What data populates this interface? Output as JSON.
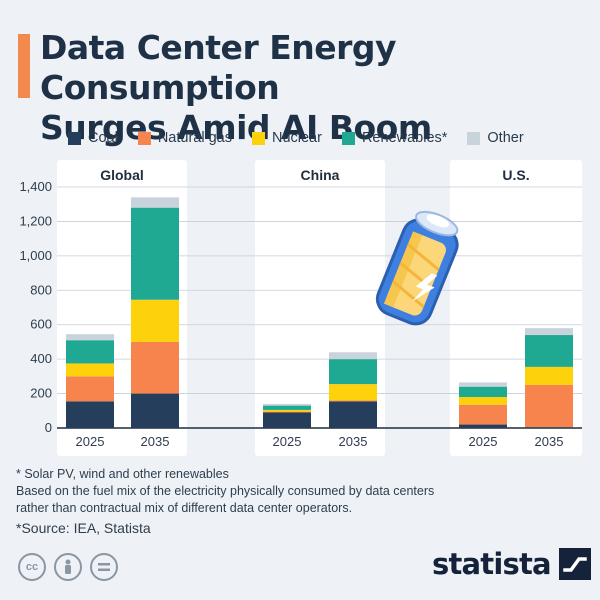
{
  "title_lines": [
    "Data Center Energy Consumption",
    "Surges Amid AI Boom"
  ],
  "legend": [
    {
      "label": "Coal",
      "color": "#253e5c"
    },
    {
      "label": "Natural gas",
      "color": "#f7844c"
    },
    {
      "label": "Nuclear",
      "color": "#fdd20d"
    },
    {
      "label": "Renewables*",
      "color": "#1fa892"
    },
    {
      "label": "Other",
      "color": "#c9d3dc"
    }
  ],
  "chart_data": {
    "type": "bar",
    "stacked": true,
    "ylim": [
      0,
      1400
    ],
    "yticks": [
      0,
      200,
      400,
      600,
      800,
      "1,000",
      "1,200",
      "1,400"
    ],
    "grid": true,
    "legend_position": "top",
    "panels": [
      {
        "name": "Global",
        "categories": [
          "2025",
          "2035"
        ],
        "series": [
          {
            "name": "Coal",
            "values": [
              155,
              200
            ]
          },
          {
            "name": "Natural gas",
            "values": [
              145,
              300
            ]
          },
          {
            "name": "Nuclear",
            "values": [
              75,
              245
            ]
          },
          {
            "name": "Renewables*",
            "values": [
              135,
              535
            ]
          },
          {
            "name": "Other",
            "values": [
              35,
              60
            ]
          }
        ]
      },
      {
        "name": "China",
        "categories": [
          "2025",
          "2035"
        ],
        "series": [
          {
            "name": "Coal",
            "values": [
              90,
              155
            ]
          },
          {
            "name": "Natural gas",
            "values": [
              5,
              5
            ]
          },
          {
            "name": "Nuclear",
            "values": [
              10,
              95
            ]
          },
          {
            "name": "Renewables*",
            "values": [
              25,
              145
            ]
          },
          {
            "name": "Other",
            "values": [
              10,
              40
            ]
          }
        ]
      },
      {
        "name": "U.S.",
        "categories": [
          "2025",
          "2035"
        ],
        "series": [
          {
            "name": "Coal",
            "values": [
              20,
              5
            ]
          },
          {
            "name": "Natural gas",
            "values": [
              115,
              245
            ]
          },
          {
            "name": "Nuclear",
            "values": [
              45,
              105
            ]
          },
          {
            "name": "Renewables*",
            "values": [
              60,
              185
            ]
          },
          {
            "name": "Other",
            "values": [
              25,
              40
            ]
          }
        ]
      }
    ]
  },
  "footnotes": [
    "* Solar PV, wind and other renewables",
    "Based on the fuel mix of the electricity physically consumed by data centers",
    "rather than contractual mix of different data center operators."
  ],
  "source": "*Source: IEA, Statista",
  "license_icons": [
    "cc-icon",
    "person-icon",
    "equals-icon"
  ],
  "brand": "statista"
}
